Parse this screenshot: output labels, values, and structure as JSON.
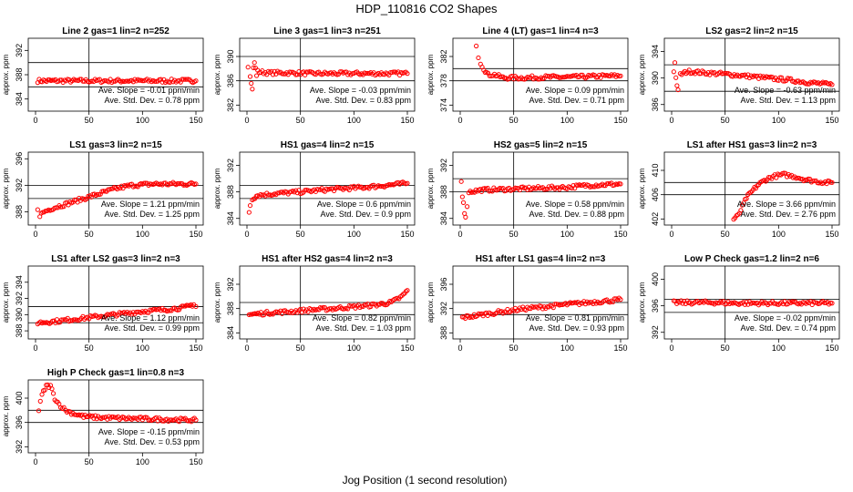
{
  "figure": {
    "title": "HDP_110816  CO2 Shapes",
    "xlabel": "Jog Position (1 second resolution)",
    "ylabel": "approx. ppm",
    "point_color": "#ff0000"
  },
  "chart_data": [
    {
      "type": "scatter",
      "title": "Line 2 gas=1 lin=2 n=252",
      "ylim": [
        382,
        394
      ],
      "yticks": [
        384,
        388,
        392
      ],
      "hlines": [
        386,
        390
      ],
      "xlim": [
        0,
        150
      ],
      "xticks": [
        0,
        50,
        100,
        150
      ],
      "slope_text": "Ave. Slope = -0.01  ppm/min",
      "std_text": "Ave. Std. Dev. = 0.78  ppm",
      "series": [
        {
          "name": "data",
          "points": [
            [
              2,
              387
            ],
            [
              20,
              387
            ],
            [
              40,
              387
            ],
            [
              60,
              387
            ],
            [
              80,
              387
            ],
            [
              100,
              387
            ],
            [
              120,
              387
            ],
            [
              150,
              387
            ]
          ]
        }
      ]
    },
    {
      "type": "scatter",
      "title": "Line 3 gas=1 lin=3 n=251",
      "ylim": [
        381,
        393
      ],
      "yticks": [
        382,
        386,
        390
      ],
      "hlines": [
        386,
        390
      ],
      "xlim": [
        0,
        150
      ],
      "xticks": [
        0,
        50,
        100,
        150
      ],
      "slope_text": "Ave. Slope = -0.03  ppm/min",
      "std_text": "Ave. Std. Dev. = 0.83  ppm",
      "series": [
        {
          "name": "data",
          "points": [
            [
              1,
              388.5
            ],
            [
              3,
              387
            ],
            [
              4,
              385.5
            ],
            [
              5,
              384.8
            ],
            [
              6,
              388
            ],
            [
              7,
              389
            ],
            [
              8,
              388
            ],
            [
              9,
              387
            ],
            [
              10,
              387.5
            ],
            [
              20,
              387.3
            ],
            [
              40,
              387.3
            ],
            [
              60,
              387.2
            ],
            [
              80,
              387.2
            ],
            [
              100,
              387.2
            ],
            [
              120,
              387.2
            ],
            [
              150,
              387.2
            ]
          ]
        }
      ]
    },
    {
      "type": "scatter",
      "title": "Line 4 (LT) gas=1 lin=4 n=3",
      "ylim": [
        373,
        385
      ],
      "yticks": [
        374,
        378,
        382
      ],
      "hlines": [
        378,
        380
      ],
      "xlim": [
        0,
        150
      ],
      "xticks": [
        0,
        50,
        100,
        150
      ],
      "slope_text": "Ave. Slope = 0.09  ppm/min",
      "std_text": "Ave. Std. Dev. = 0.71  ppm",
      "series": [
        {
          "name": "data",
          "points": [
            [
              15,
              384
            ],
            [
              17,
              382
            ],
            [
              19,
              381
            ],
            [
              22,
              380
            ],
            [
              26,
              379
            ],
            [
              32,
              379
            ],
            [
              40,
              378.5
            ],
            [
              60,
              378.5
            ],
            [
              80,
              378.6
            ],
            [
              100,
              378.6
            ],
            [
              120,
              378.7
            ],
            [
              140,
              378.8
            ],
            [
              150,
              378.8
            ]
          ]
        }
      ]
    },
    {
      "type": "scatter",
      "title": "LS2 gas=2 lin=2 n=15",
      "ylim": [
        385,
        396
      ],
      "yticks": [
        386,
        390,
        394
      ],
      "hlines": [
        388,
        392
      ],
      "xlim": [
        0,
        150
      ],
      "xticks": [
        0,
        50,
        100,
        150
      ],
      "slope_text": "Ave. Slope = -0.63  ppm/min",
      "std_text": "Ave. Std. Dev. = 1.13  ppm",
      "series": [
        {
          "name": "data",
          "points": [
            [
              2,
              391
            ],
            [
              3,
              392.5
            ],
            [
              4,
              390
            ],
            [
              5,
              389
            ],
            [
              6,
              388
            ],
            [
              8,
              390.5
            ],
            [
              15,
              391
            ],
            [
              30,
              390.8
            ],
            [
              50,
              390.6
            ],
            [
              70,
              390.3
            ],
            [
              90,
              390
            ],
            [
              110,
              389.7
            ],
            [
              130,
              389.3
            ],
            [
              150,
              389
            ]
          ]
        }
      ]
    },
    {
      "type": "scatter",
      "title": "LS1 gas=3 lin=2 n=15",
      "ylim": [
        386,
        397
      ],
      "yticks": [
        388,
        392,
        396
      ],
      "hlines": [
        390,
        392
      ],
      "xlim": [
        0,
        150
      ],
      "xticks": [
        0,
        50,
        100,
        150
      ],
      "slope_text": "Ave. Slope = 1.21  ppm/min",
      "std_text": "Ave. Std. Dev. = 1.25  ppm",
      "series": [
        {
          "name": "data",
          "points": [
            [
              2,
              388.5
            ],
            [
              4,
              387.5
            ],
            [
              8,
              388
            ],
            [
              15,
              388.5
            ],
            [
              25,
              389
            ],
            [
              35,
              389.5
            ],
            [
              45,
              390
            ],
            [
              55,
              390.5
            ],
            [
              65,
              391
            ],
            [
              75,
              391.5
            ],
            [
              90,
              392
            ],
            [
              110,
              392.2
            ],
            [
              130,
              392.2
            ],
            [
              150,
              392.2
            ]
          ]
        }
      ]
    },
    {
      "type": "scatter",
      "title": "HS1 gas=4 lin=2 n=15",
      "ylim": [
        383,
        394
      ],
      "yticks": [
        384,
        388,
        392
      ],
      "hlines": [
        387,
        389
      ],
      "xlim": [
        0,
        150
      ],
      "xticks": [
        0,
        50,
        100,
        150
      ],
      "slope_text": "Ave. Slope = 0.6  ppm/min",
      "std_text": "Ave. Std. Dev. = 0.9  ppm",
      "series": [
        {
          "name": "data",
          "points": [
            [
              2,
              385
            ],
            [
              3,
              386
            ],
            [
              5,
              387
            ],
            [
              10,
              387.5
            ],
            [
              30,
              387.8
            ],
            [
              50,
              388
            ],
            [
              70,
              388.3
            ],
            [
              90,
              388.5
            ],
            [
              110,
              388.7
            ],
            [
              130,
              389
            ],
            [
              150,
              389.3
            ]
          ]
        }
      ]
    },
    {
      "type": "scatter",
      "title": "HS2 gas=5 lin=2 n=15",
      "ylim": [
        383,
        394
      ],
      "yticks": [
        384,
        388,
        392
      ],
      "hlines": [
        388,
        390
      ],
      "xlim": [
        0,
        150
      ],
      "xticks": [
        0,
        50,
        100,
        150
      ],
      "slope_text": "Ave. Slope = 0.58  ppm/min",
      "std_text": "Ave. Std. Dev. = 0.88  ppm",
      "series": [
        {
          "name": "data",
          "points": [
            [
              1,
              389.5
            ],
            [
              2,
              387.5
            ],
            [
              3,
              386.5
            ],
            [
              4,
              385
            ],
            [
              5,
              384
            ],
            [
              8,
              388
            ],
            [
              20,
              388.3
            ],
            [
              40,
              388.4
            ],
            [
              60,
              388.5
            ],
            [
              80,
              388.6
            ],
            [
              100,
              388.7
            ],
            [
              120,
              389
            ],
            [
              150,
              389.2
            ]
          ]
        }
      ]
    },
    {
      "type": "scatter",
      "title": "LS1 after HS1 gas=3 lin=2 n=3",
      "ylim": [
        401,
        413
      ],
      "yticks": [
        402,
        406,
        410
      ],
      "hlines": [
        406,
        408
      ],
      "xlim": [
        0,
        150
      ],
      "xticks": [
        0,
        50,
        100,
        150
      ],
      "slope_text": "Ave. Slope = 3.66  ppm/min",
      "std_text": "Ave. Std. Dev. = 2.76  ppm",
      "series": [
        {
          "name": "data",
          "points": [
            [
              58,
              402
            ],
            [
              62,
              402.5
            ],
            [
              66,
              404
            ],
            [
              70,
              405.5
            ],
            [
              75,
              406.5
            ],
            [
              80,
              407.5
            ],
            [
              88,
              408.5
            ],
            [
              95,
              409
            ],
            [
              105,
              409.3
            ],
            [
              115,
              409
            ],
            [
              125,
              408.5
            ],
            [
              135,
              408.2
            ],
            [
              145,
              408
            ],
            [
              150,
              408
            ]
          ]
        }
      ]
    },
    {
      "type": "scatter",
      "title": "LS1 after LS2 gas=3 lin=2 n=3",
      "ylim": [
        387,
        396
      ],
      "yticks": [
        388,
        390,
        392,
        394
      ],
      "hlines": [
        389,
        391
      ],
      "xlim": [
        0,
        150
      ],
      "xticks": [
        0,
        50,
        100,
        150
      ],
      "slope_text": "Ave. Slope = 1.12  ppm/min",
      "std_text": "Ave. Std. Dev. = 0.99  ppm",
      "series": [
        {
          "name": "data",
          "points": [
            [
              2,
              389
            ],
            [
              20,
              389.2
            ],
            [
              40,
              389.5
            ],
            [
              60,
              389.8
            ],
            [
              80,
              390.1
            ],
            [
              100,
              390.4
            ],
            [
              120,
              390.6
            ],
            [
              140,
              390.9
            ],
            [
              148,
              391.3
            ],
            [
              150,
              391
            ]
          ]
        }
      ]
    },
    {
      "type": "scatter",
      "title": "HS1 after HS2 gas=4 lin=2 n=3",
      "ylim": [
        383,
        395
      ],
      "yticks": [
        384,
        388,
        392
      ],
      "hlines": [
        387,
        389
      ],
      "xlim": [
        0,
        150
      ],
      "xticks": [
        0,
        50,
        100,
        150
      ],
      "slope_text": "Ave. Slope = 0.82  ppm/min",
      "std_text": "Ave. Std. Dev. = 1.03  ppm",
      "series": [
        {
          "name": "data",
          "points": [
            [
              2,
              387
            ],
            [
              20,
              387.3
            ],
            [
              40,
              387.5
            ],
            [
              60,
              387.8
            ],
            [
              80,
              388
            ],
            [
              100,
              388.3
            ],
            [
              120,
              388.6
            ],
            [
              135,
              389
            ],
            [
              145,
              390
            ],
            [
              150,
              391
            ]
          ]
        }
      ]
    },
    {
      "type": "scatter",
      "title": "HS1 after LS1 gas=4 lin=2 n=3",
      "ylim": [
        387,
        399
      ],
      "yticks": [
        388,
        392,
        396
      ],
      "hlines": [
        391,
        393
      ],
      "xlim": [
        0,
        150
      ],
      "xticks": [
        0,
        50,
        100,
        150
      ],
      "slope_text": "Ave. Slope = 0.81  ppm/min",
      "std_text": "Ave. Std. Dev. = 0.93  ppm",
      "series": [
        {
          "name": "data",
          "points": [
            [
              2,
              390.5
            ],
            [
              20,
              391
            ],
            [
              40,
              391.5
            ],
            [
              60,
              392
            ],
            [
              80,
              392.3
            ],
            [
              100,
              392.7
            ],
            [
              120,
              393
            ],
            [
              140,
              393.3
            ],
            [
              150,
              393.5
            ]
          ]
        }
      ]
    },
    {
      "type": "scatter",
      "title": "Low P Check gas=1.2 lin=2 n=6",
      "ylim": [
        391,
        402
      ],
      "yticks": [
        392,
        396,
        400
      ],
      "hlines": [
        395,
        397
      ],
      "xlim": [
        0,
        150
      ],
      "xticks": [
        0,
        50,
        100,
        150
      ],
      "slope_text": "Ave. Slope = -0.02  ppm/min",
      "std_text": "Ave. Std. Dev. = 0.74  ppm",
      "series": [
        {
          "name": "data",
          "points": [
            [
              2,
              396.5
            ],
            [
              20,
              396.5
            ],
            [
              40,
              396.5
            ],
            [
              60,
              396.4
            ],
            [
              80,
              396.4
            ],
            [
              100,
              396.4
            ],
            [
              120,
              396.4
            ],
            [
              150,
              396.4
            ]
          ]
        }
      ]
    },
    {
      "type": "scatter",
      "title": "High P Check gas=1 lin=0.8 n=3",
      "ylim": [
        391,
        403
      ],
      "yticks": [
        392,
        396,
        400
      ],
      "hlines": [
        396,
        398
      ],
      "xlim": [
        0,
        150
      ],
      "xticks": [
        0,
        50,
        100,
        150
      ],
      "slope_text": "Ave. Slope = -0.15  ppm/min",
      "std_text": "Ave. Std. Dev. = 0.53  ppm",
      "series": [
        {
          "name": "data",
          "points": [
            [
              3,
              398
            ],
            [
              6,
              400.5
            ],
            [
              10,
              402
            ],
            [
              14,
              402
            ],
            [
              18,
              400
            ],
            [
              22,
              399
            ],
            [
              28,
              398
            ],
            [
              35,
              397.5
            ],
            [
              45,
              397
            ],
            [
              60,
              396.8
            ],
            [
              80,
              396.7
            ],
            [
              100,
              396.6
            ],
            [
              120,
              396.5
            ],
            [
              150,
              396.4
            ]
          ]
        }
      ]
    }
  ]
}
